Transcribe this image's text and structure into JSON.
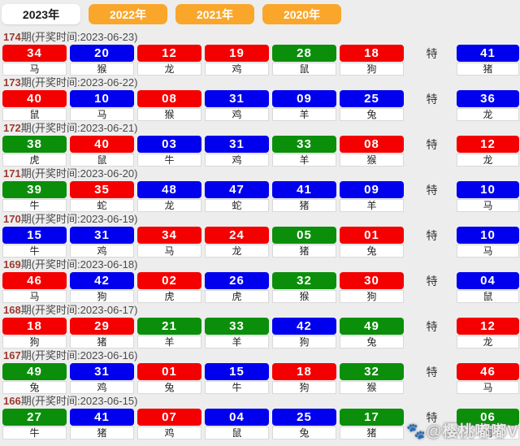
{
  "tab_bar": {
    "tabs": [
      {
        "label": "2023年",
        "active": true
      },
      {
        "label": "2022年",
        "active": false
      },
      {
        "label": "2021年",
        "active": false
      },
      {
        "label": "2020年",
        "active": false
      }
    ]
  },
  "special_label": "特",
  "watermark": {
    "paw_icon": "🐾",
    "text": "@樱桃嘟嘟V"
  },
  "colors": {
    "red": "#f50000",
    "blue": "#0000ee",
    "green": "#0b8f0b",
    "tab_orange": "#f9a62b"
  },
  "draws": [
    {
      "period": "174",
      "info": "期(开奖时间:2023-06-23)",
      "balls": [
        {
          "num": "34",
          "color": "red",
          "zodiac": "马"
        },
        {
          "num": "20",
          "color": "blue",
          "zodiac": "猴"
        },
        {
          "num": "12",
          "color": "red",
          "zodiac": "龙"
        },
        {
          "num": "19",
          "color": "red",
          "zodiac": "鸡"
        },
        {
          "num": "28",
          "color": "green",
          "zodiac": "鼠"
        },
        {
          "num": "18",
          "color": "red",
          "zodiac": "狗"
        }
      ],
      "special": {
        "num": "41",
        "color": "blue",
        "zodiac": "猪"
      }
    },
    {
      "period": "173",
      "info": "期(开奖时间:2023-06-22)",
      "balls": [
        {
          "num": "40",
          "color": "red",
          "zodiac": "鼠"
        },
        {
          "num": "10",
          "color": "blue",
          "zodiac": "马"
        },
        {
          "num": "08",
          "color": "red",
          "zodiac": "猴"
        },
        {
          "num": "31",
          "color": "blue",
          "zodiac": "鸡"
        },
        {
          "num": "09",
          "color": "blue",
          "zodiac": "羊"
        },
        {
          "num": "25",
          "color": "blue",
          "zodiac": "兔"
        }
      ],
      "special": {
        "num": "36",
        "color": "blue",
        "zodiac": "龙"
      }
    },
    {
      "period": "172",
      "info": "期(开奖时间:2023-06-21)",
      "balls": [
        {
          "num": "38",
          "color": "green",
          "zodiac": "虎"
        },
        {
          "num": "40",
          "color": "red",
          "zodiac": "鼠"
        },
        {
          "num": "03",
          "color": "blue",
          "zodiac": "牛"
        },
        {
          "num": "31",
          "color": "blue",
          "zodiac": "鸡"
        },
        {
          "num": "33",
          "color": "green",
          "zodiac": "羊"
        },
        {
          "num": "08",
          "color": "red",
          "zodiac": "猴"
        }
      ],
      "special": {
        "num": "12",
        "color": "red",
        "zodiac": "龙"
      }
    },
    {
      "period": "171",
      "info": "期(开奖时间:2023-06-20)",
      "balls": [
        {
          "num": "39",
          "color": "green",
          "zodiac": "牛"
        },
        {
          "num": "35",
          "color": "red",
          "zodiac": "蛇"
        },
        {
          "num": "48",
          "color": "blue",
          "zodiac": "龙"
        },
        {
          "num": "47",
          "color": "blue",
          "zodiac": "蛇"
        },
        {
          "num": "41",
          "color": "blue",
          "zodiac": "猪"
        },
        {
          "num": "09",
          "color": "blue",
          "zodiac": "羊"
        }
      ],
      "special": {
        "num": "10",
        "color": "blue",
        "zodiac": "马"
      }
    },
    {
      "period": "170",
      "info": "期(开奖时间:2023-06-19)",
      "balls": [
        {
          "num": "15",
          "color": "blue",
          "zodiac": "牛"
        },
        {
          "num": "31",
          "color": "blue",
          "zodiac": "鸡"
        },
        {
          "num": "34",
          "color": "red",
          "zodiac": "马"
        },
        {
          "num": "24",
          "color": "red",
          "zodiac": "龙"
        },
        {
          "num": "05",
          "color": "green",
          "zodiac": "猪"
        },
        {
          "num": "01",
          "color": "red",
          "zodiac": "兔"
        }
      ],
      "special": {
        "num": "10",
        "color": "blue",
        "zodiac": "马"
      }
    },
    {
      "period": "169",
      "info": "期(开奖时间:2023-06-18)",
      "balls": [
        {
          "num": "46",
          "color": "red",
          "zodiac": "马"
        },
        {
          "num": "42",
          "color": "blue",
          "zodiac": "狗"
        },
        {
          "num": "02",
          "color": "red",
          "zodiac": "虎"
        },
        {
          "num": "26",
          "color": "blue",
          "zodiac": "虎"
        },
        {
          "num": "32",
          "color": "green",
          "zodiac": "猴"
        },
        {
          "num": "30",
          "color": "red",
          "zodiac": "狗"
        }
      ],
      "special": {
        "num": "04",
        "color": "blue",
        "zodiac": "鼠"
      }
    },
    {
      "period": "168",
      "info": "期(开奖时间:2023-06-17)",
      "balls": [
        {
          "num": "18",
          "color": "red",
          "zodiac": "狗"
        },
        {
          "num": "29",
          "color": "red",
          "zodiac": "猪"
        },
        {
          "num": "21",
          "color": "green",
          "zodiac": "羊"
        },
        {
          "num": "33",
          "color": "green",
          "zodiac": "羊"
        },
        {
          "num": "42",
          "color": "blue",
          "zodiac": "狗"
        },
        {
          "num": "49",
          "color": "green",
          "zodiac": "兔"
        }
      ],
      "special": {
        "num": "12",
        "color": "red",
        "zodiac": "龙"
      }
    },
    {
      "period": "167",
      "info": "期(开奖时间:2023-06-16)",
      "balls": [
        {
          "num": "49",
          "color": "green",
          "zodiac": "兔"
        },
        {
          "num": "31",
          "color": "blue",
          "zodiac": "鸡"
        },
        {
          "num": "01",
          "color": "red",
          "zodiac": "兔"
        },
        {
          "num": "15",
          "color": "blue",
          "zodiac": "牛"
        },
        {
          "num": "18",
          "color": "red",
          "zodiac": "狗"
        },
        {
          "num": "32",
          "color": "green",
          "zodiac": "猴"
        }
      ],
      "special": {
        "num": "46",
        "color": "red",
        "zodiac": "马"
      }
    },
    {
      "period": "166",
      "info": "期(开奖时间:2023-06-15)",
      "balls": [
        {
          "num": "27",
          "color": "green",
          "zodiac": "牛"
        },
        {
          "num": "41",
          "color": "blue",
          "zodiac": "猪"
        },
        {
          "num": "07",
          "color": "red",
          "zodiac": "鸡"
        },
        {
          "num": "04",
          "color": "blue",
          "zodiac": "鼠"
        },
        {
          "num": "25",
          "color": "blue",
          "zodiac": "兔"
        },
        {
          "num": "17",
          "color": "green",
          "zodiac": "猪"
        }
      ],
      "special": {
        "num": "06",
        "color": "green",
        "zodiac": "狗"
      }
    }
  ]
}
